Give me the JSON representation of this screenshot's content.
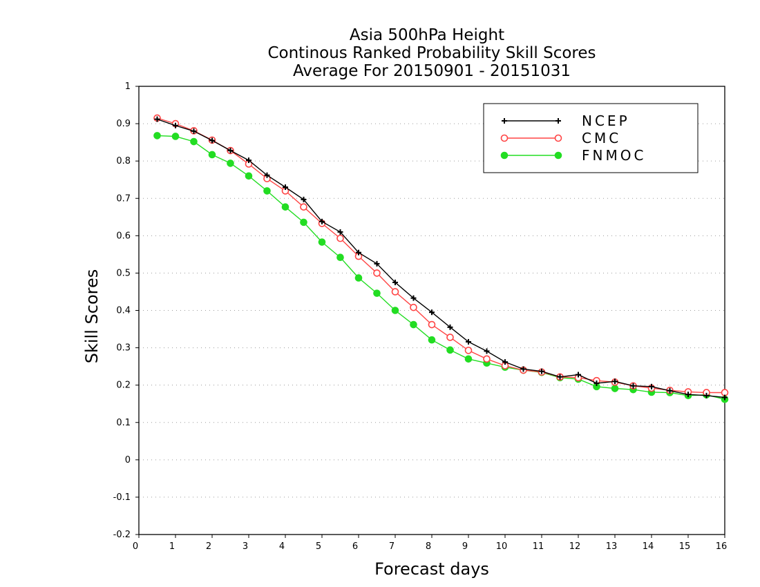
{
  "chart_data": {
    "type": "line",
    "title": [
      "Asia 500hPa Height",
      "Continous Ranked Probability Skill Scores",
      "Average For 20150901 - 20151031"
    ],
    "xlabel": "Forecast days",
    "ylabel": "Skill Scores",
    "xlim": [
      0,
      16
    ],
    "ylim": [
      -0.2,
      1
    ],
    "xticks": [
      "0",
      "1",
      "2",
      "3",
      "4",
      "5",
      "6",
      "7",
      "8",
      "9",
      "10",
      "11",
      "12",
      "13",
      "14",
      "15",
      "16"
    ],
    "yticks": [
      "-0.2",
      "-0.1",
      "0",
      "0.1",
      "0.2",
      "0.3",
      "0.4",
      "0.5",
      "0.6",
      "0.7",
      "0.8",
      "0.9",
      "1"
    ],
    "grid": true,
    "legend_position": "top-right",
    "x": [
      0.5,
      1,
      1.5,
      2,
      2.5,
      3,
      3.5,
      4,
      4.5,
      5,
      5.5,
      6,
      6.5,
      7,
      7.5,
      8,
      8.5,
      9,
      9.5,
      10,
      10.5,
      11,
      11.5,
      12,
      12.5,
      13,
      13.5,
      14,
      14.5,
      15,
      15.5,
      16
    ],
    "series": [
      {
        "name": "NCEP",
        "color": "#000000",
        "marker": "plus",
        "values": [
          0.912,
          0.895,
          0.88,
          0.855,
          0.828,
          0.802,
          0.762,
          0.73,
          0.697,
          0.638,
          0.61,
          0.555,
          0.525,
          0.475,
          0.433,
          0.395,
          0.355,
          0.316,
          0.291,
          0.262,
          0.243,
          0.237,
          0.222,
          0.228,
          0.205,
          0.21,
          0.198,
          0.196,
          0.185,
          0.175,
          0.172,
          0.167
        ]
      },
      {
        "name": "CMC",
        "color": "#ff4444",
        "marker": "open-circle",
        "values": [
          0.915,
          0.9,
          0.881,
          0.856,
          0.828,
          0.792,
          0.753,
          0.72,
          0.677,
          0.633,
          0.593,
          0.545,
          0.5,
          0.45,
          0.408,
          0.362,
          0.328,
          0.293,
          0.27,
          0.252,
          0.24,
          0.235,
          0.222,
          0.22,
          0.212,
          0.208,
          0.198,
          0.192,
          0.186,
          0.182,
          0.18,
          0.18
        ]
      },
      {
        "name": "FNMOC",
        "color": "#22dd22",
        "marker": "filled-circle",
        "values": [
          0.868,
          0.866,
          0.852,
          0.817,
          0.794,
          0.76,
          0.72,
          0.677,
          0.636,
          0.583,
          0.542,
          0.487,
          0.446,
          0.4,
          0.362,
          0.321,
          0.294,
          0.27,
          0.259,
          0.248,
          0.24,
          0.234,
          0.22,
          0.216,
          0.196,
          0.191,
          0.188,
          0.181,
          0.18,
          0.172,
          0.174,
          0.162
        ]
      }
    ]
  }
}
